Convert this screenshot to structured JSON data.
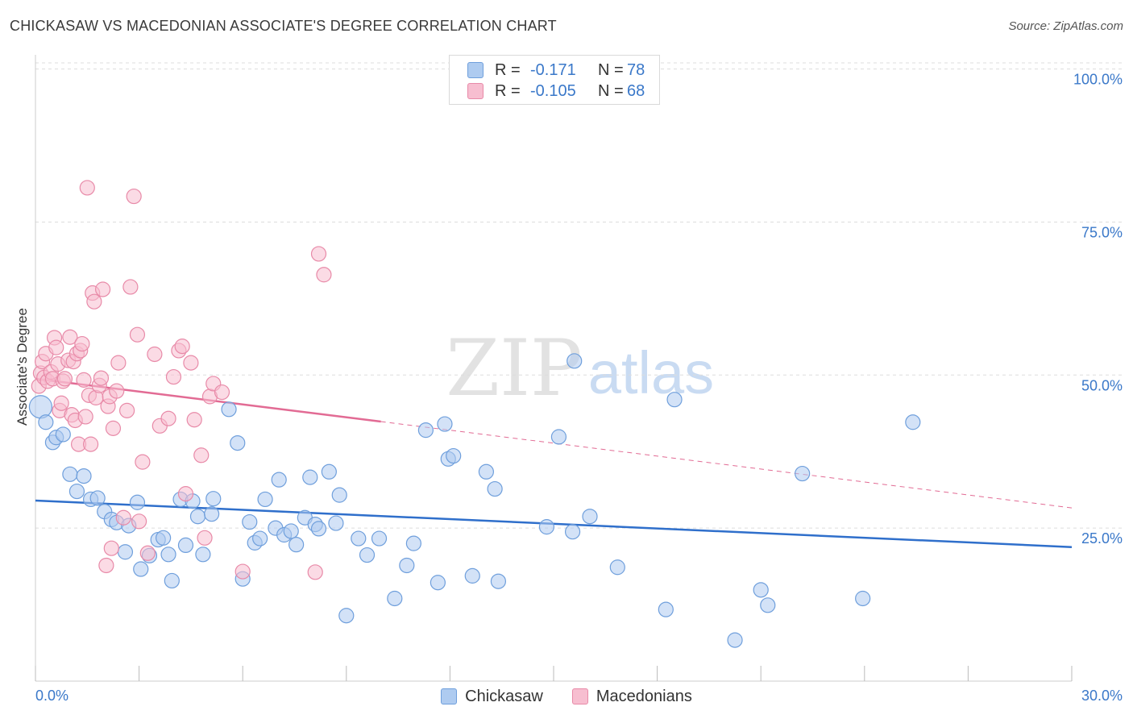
{
  "header": {
    "title": "CHICKASAW VS MACEDONIAN ASSOCIATE'S DEGREE CORRELATION CHART",
    "source": "Source: ZipAtlas.com"
  },
  "legend": {
    "r_label": "R =",
    "n_label": "N =",
    "series": [
      {
        "name": "Chickasaw",
        "r": "-0.171",
        "n": "78"
      },
      {
        "name": "Macedonians",
        "r": "-0.105",
        "n": "68"
      }
    ]
  },
  "colors": {
    "chickasaw_fill": "#aecbf0",
    "chickasaw_stroke": "#6f9fdc",
    "chickasaw_line": "#2f6fcb",
    "macedonians_fill": "#f7bed0",
    "macedonians_stroke": "#e88aa8",
    "macedonians_line": "#e26b94",
    "axis_text": "#3a78c9",
    "grid": "#dddddd"
  },
  "chart_data": {
    "type": "scatter",
    "title": "CHICKASAW VS MACEDONIAN ASSOCIATE'S DEGREE CORRELATION CHART",
    "xlabel": "",
    "ylabel": "Associate's Degree",
    "xlim": [
      0,
      30
    ],
    "ylim": [
      0,
      101
    ],
    "x_tick_labels": [
      "0.0%",
      "30.0%"
    ],
    "y_ticks": [
      25,
      50,
      75,
      100
    ],
    "y_tick_labels": [
      "25.0%",
      "50.0%",
      "75.0%",
      "100.0%"
    ],
    "grid": true,
    "legend_position": "top-center",
    "watermark": "ZIPatlas",
    "series": [
      {
        "name": "Chickasaw",
        "r": -0.171,
        "n": 78,
        "trend": {
          "x": [
            0,
            30
          ],
          "y": [
            29.5,
            21.9
          ]
        },
        "points": [
          [
            0.15,
            44.8
          ],
          [
            0.3,
            42.3
          ],
          [
            0.5,
            39.0
          ],
          [
            0.6,
            39.8
          ],
          [
            0.8,
            40.3
          ],
          [
            1.0,
            33.8
          ],
          [
            1.2,
            31.0
          ],
          [
            1.4,
            33.5
          ],
          [
            1.6,
            29.7
          ],
          [
            1.8,
            29.9
          ],
          [
            2.0,
            27.7
          ],
          [
            2.2,
            26.4
          ],
          [
            2.35,
            25.9
          ],
          [
            2.6,
            21.1
          ],
          [
            2.7,
            25.4
          ],
          [
            2.95,
            29.2
          ],
          [
            3.05,
            18.3
          ],
          [
            3.3,
            20.5
          ],
          [
            3.55,
            23.1
          ],
          [
            3.7,
            23.4
          ],
          [
            3.85,
            20.7
          ],
          [
            3.95,
            16.4
          ],
          [
            4.2,
            29.7
          ],
          [
            4.35,
            22.2
          ],
          [
            4.55,
            29.4
          ],
          [
            4.7,
            26.9
          ],
          [
            4.85,
            20.7
          ],
          [
            5.1,
            27.3
          ],
          [
            5.15,
            29.8
          ],
          [
            5.6,
            44.4
          ],
          [
            5.85,
            38.9
          ],
          [
            6.0,
            16.7
          ],
          [
            6.2,
            26.0
          ],
          [
            6.35,
            22.6
          ],
          [
            6.5,
            23.3
          ],
          [
            6.65,
            29.7
          ],
          [
            6.95,
            25.0
          ],
          [
            7.05,
            32.9
          ],
          [
            7.2,
            23.9
          ],
          [
            7.4,
            24.5
          ],
          [
            7.55,
            22.3
          ],
          [
            7.8,
            26.7
          ],
          [
            7.95,
            33.3
          ],
          [
            8.1,
            25.6
          ],
          [
            8.2,
            24.9
          ],
          [
            8.5,
            34.2
          ],
          [
            8.7,
            25.8
          ],
          [
            8.8,
            30.4
          ],
          [
            9.0,
            10.7
          ],
          [
            9.35,
            23.3
          ],
          [
            9.6,
            20.6
          ],
          [
            9.95,
            23.3
          ],
          [
            10.4,
            13.5
          ],
          [
            10.75,
            18.9
          ],
          [
            10.95,
            22.5
          ],
          [
            11.3,
            41.0
          ],
          [
            11.65,
            16.1
          ],
          [
            11.85,
            42.0
          ],
          [
            11.95,
            36.3
          ],
          [
            12.1,
            36.8
          ],
          [
            12.65,
            17.2
          ],
          [
            13.05,
            34.2
          ],
          [
            13.3,
            31.4
          ],
          [
            13.4,
            16.3
          ],
          [
            14.8,
            25.2
          ],
          [
            15.15,
            39.9
          ],
          [
            15.55,
            24.4
          ],
          [
            15.6,
            52.3
          ],
          [
            16.05,
            26.9
          ],
          [
            16.85,
            18.6
          ],
          [
            18.25,
            11.7
          ],
          [
            18.5,
            46.0
          ],
          [
            20.25,
            6.7
          ],
          [
            21.0,
            14.9
          ],
          [
            21.2,
            12.4
          ],
          [
            22.2,
            33.9
          ],
          [
            23.95,
            13.5
          ],
          [
            25.4,
            42.3
          ]
        ]
      },
      {
        "name": "Macedonians",
        "r": -0.105,
        "n": 68,
        "trend": {
          "x": [
            0,
            10
          ],
          "y": [
            49.4,
            42.4
          ]
        },
        "trend_extension": {
          "x": [
            10,
            30
          ],
          "y": [
            42.4,
            28.3
          ]
        },
        "points": [
          [
            0.1,
            48.2
          ],
          [
            0.15,
            50.3
          ],
          [
            0.2,
            52.2
          ],
          [
            0.25,
            49.6
          ],
          [
            0.3,
            53.5
          ],
          [
            0.35,
            49.0
          ],
          [
            0.45,
            50.5
          ],
          [
            0.5,
            49.4
          ],
          [
            0.55,
            56.1
          ],
          [
            0.6,
            54.5
          ],
          [
            0.65,
            51.8
          ],
          [
            0.7,
            44.2
          ],
          [
            0.75,
            45.4
          ],
          [
            0.8,
            49.0
          ],
          [
            0.85,
            49.4
          ],
          [
            0.95,
            52.4
          ],
          [
            1.0,
            56.2
          ],
          [
            1.05,
            43.5
          ],
          [
            1.1,
            52.2
          ],
          [
            1.15,
            42.6
          ],
          [
            1.2,
            53.5
          ],
          [
            1.25,
            38.7
          ],
          [
            1.3,
            54.0
          ],
          [
            1.35,
            55.1
          ],
          [
            1.4,
            49.2
          ],
          [
            1.45,
            43.2
          ],
          [
            1.5,
            80.6
          ],
          [
            1.55,
            46.7
          ],
          [
            1.6,
            38.7
          ],
          [
            1.65,
            63.4
          ],
          [
            1.7,
            62.0
          ],
          [
            1.75,
            46.3
          ],
          [
            1.85,
            48.3
          ],
          [
            1.9,
            49.5
          ],
          [
            1.95,
            64.0
          ],
          [
            2.05,
            18.9
          ],
          [
            2.1,
            44.9
          ],
          [
            2.15,
            46.5
          ],
          [
            2.2,
            21.7
          ],
          [
            2.25,
            41.3
          ],
          [
            2.35,
            47.4
          ],
          [
            2.4,
            52.0
          ],
          [
            2.55,
            26.7
          ],
          [
            2.65,
            44.2
          ],
          [
            2.75,
            64.4
          ],
          [
            2.85,
            79.2
          ],
          [
            2.95,
            56.6
          ],
          [
            3.0,
            26.1
          ],
          [
            3.1,
            35.8
          ],
          [
            3.25,
            20.9
          ],
          [
            3.45,
            53.4
          ],
          [
            3.6,
            41.7
          ],
          [
            3.85,
            42.9
          ],
          [
            4.0,
            49.7
          ],
          [
            4.15,
            54.0
          ],
          [
            4.25,
            54.7
          ],
          [
            4.35,
            30.6
          ],
          [
            4.5,
            52.0
          ],
          [
            4.6,
            42.7
          ],
          [
            4.8,
            36.9
          ],
          [
            4.9,
            23.4
          ],
          [
            5.05,
            46.5
          ],
          [
            5.15,
            48.6
          ],
          [
            5.4,
            47.2
          ],
          [
            6.0,
            17.9
          ],
          [
            8.1,
            17.8
          ],
          [
            8.2,
            69.8
          ],
          [
            8.35,
            66.4
          ]
        ]
      }
    ]
  }
}
